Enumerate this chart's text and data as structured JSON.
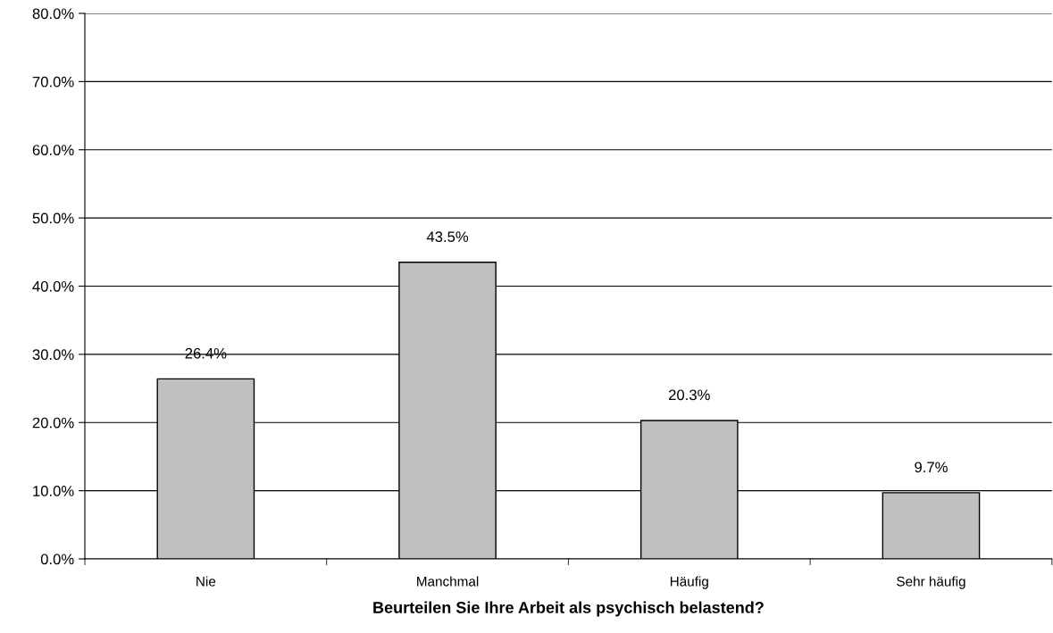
{
  "chart_data": {
    "type": "bar",
    "xlabel": "Beurteilen Sie Ihre Arbeit als psychisch belastend?",
    "categories": [
      "Nie",
      "Manchmal",
      "Häufig",
      "Sehr häufig"
    ],
    "values": [
      26.4,
      43.5,
      20.3,
      9.7
    ],
    "value_labels": [
      "26.4%",
      "43.5%",
      "20.3%",
      "9.7%"
    ],
    "color": "#c0c0c0",
    "ylim": [
      0,
      80
    ],
    "yticks": [
      {
        "value": 0,
        "label": "0.0%"
      },
      {
        "value": 10,
        "label": "10.0%"
      },
      {
        "value": 20,
        "label": "20.0%"
      },
      {
        "value": 30,
        "label": "30.0%"
      },
      {
        "value": 40,
        "label": "40.0%"
      },
      {
        "value": 50,
        "label": "50.0%"
      },
      {
        "value": 60,
        "label": "60.0%"
      },
      {
        "value": 70,
        "label": "70.0%"
      },
      {
        "value": 80,
        "label": "80.0%"
      }
    ],
    "grid": "y",
    "legend": false
  }
}
